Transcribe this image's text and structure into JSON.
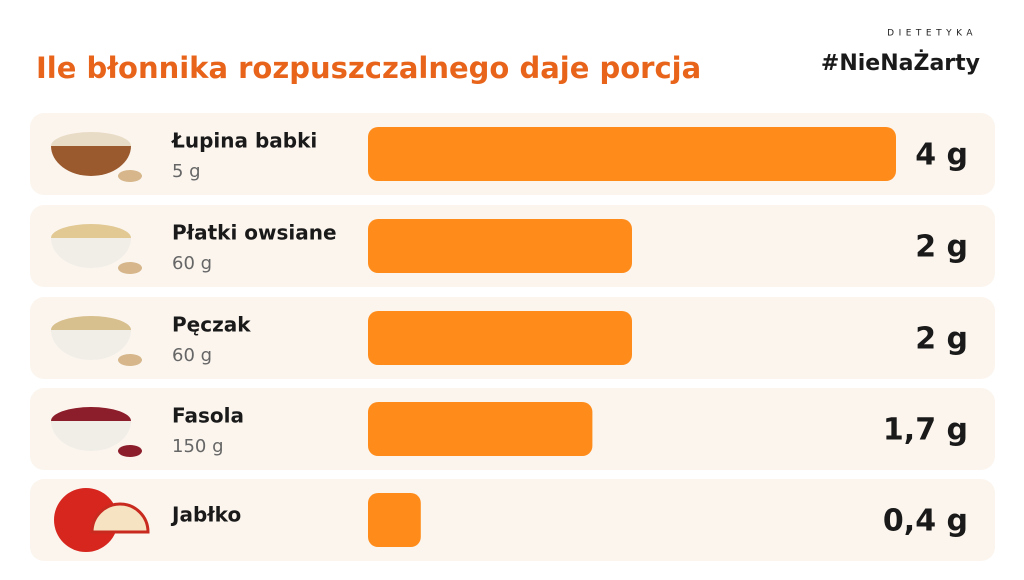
{
  "brand_top": "DIETETYKA",
  "brand": "#NieNaŻarty",
  "chart_data": {
    "type": "bar",
    "orientation": "horizontal",
    "title": "Ile błonnika rozpuszczalnego daje porcja",
    "categories": [
      "Łupina babki",
      "Płatki owsiane",
      "Pęczak",
      "Fasola",
      "Jabłko"
    ],
    "portions": [
      "5 g",
      "60 g",
      "60 g",
      "150 g",
      null
    ],
    "values": [
      4,
      2,
      2,
      1.7,
      0.4
    ],
    "value_labels": [
      "4 g",
      "2 g",
      "2 g",
      "1,7 g",
      "0,4 g"
    ],
    "color": "#ff8c1a"
  }
}
